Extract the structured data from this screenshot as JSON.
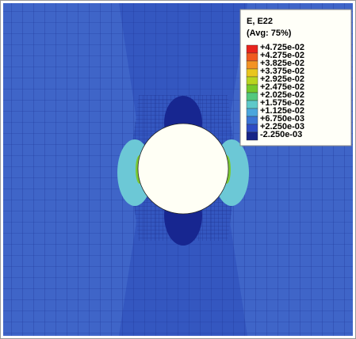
{
  "legend": {
    "title": "E, E22",
    "subtitle": "(Avg: 75%)",
    "labels": [
      "+4.725e-02",
      "+4.275e-02",
      "+3.825e-02",
      "+3.375e-02",
      "+2.925e-02",
      "+2.475e-02",
      "+2.025e-02",
      "+1.575e-02",
      "+1.125e-02",
      "+6.750e-03",
      "+2.250e-03",
      "-2.250e-03"
    ],
    "colors": [
      "#e8231b",
      "#f05a1e",
      "#f39322",
      "#e9c61c",
      "#b9d51f",
      "#75c92a",
      "#53c87e",
      "#5ec9c9",
      "#4aa6dc",
      "#3b74d4",
      "#2d4cc4",
      "#162487"
    ]
  }
}
